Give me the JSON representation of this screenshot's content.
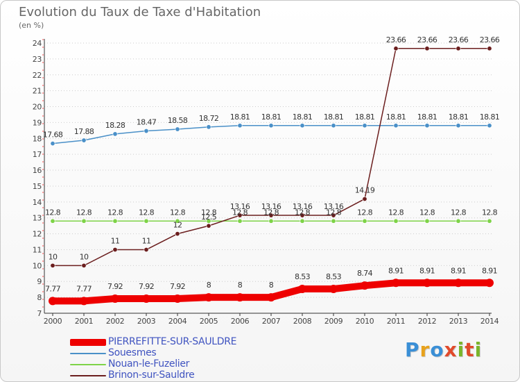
{
  "title": "Evolution du Taux de Taxe d'Habitation",
  "unit": "(en %)",
  "logo": {
    "text": "Proxiti",
    "colors": [
      "#3a8fd6",
      "#e8a21c",
      "#3a8fd6",
      "#e14a2b",
      "#7ab52a",
      "#e14a2b",
      "#7ab52a"
    ]
  },
  "chart_data": {
    "type": "line",
    "title": "Evolution du Taux de Taxe d'Habitation",
    "ylabel": "(en %)",
    "xlabel": "",
    "x": [
      "2000",
      "2001",
      "2002",
      "2003",
      "2004",
      "2005",
      "2006",
      "2007",
      "2008",
      "2009",
      "2010",
      "2011",
      "2012",
      "2013",
      "2014"
    ],
    "ylim": [
      7,
      24
    ],
    "yticks": [
      "7",
      "8",
      "9",
      "10",
      "11",
      "12",
      "13",
      "14",
      "15",
      "16",
      "17",
      "18",
      "19",
      "20",
      "21",
      "22",
      "23",
      "24"
    ],
    "grid": "horizontal dotted",
    "legend_position": "bottom-left",
    "series": [
      {
        "name": "PIERREFITTE-SUR-SAULDRE",
        "color": "#ee0000",
        "emphasis": true,
        "values": [
          7.77,
          7.77,
          7.92,
          7.92,
          7.92,
          8,
          8,
          8,
          8.53,
          8.53,
          8.74,
          8.91,
          8.91,
          8.91,
          8.91
        ],
        "labels": [
          "7.77",
          "7.77",
          "7.92",
          "7.92",
          "7.92",
          "8",
          "8",
          "8",
          "8.53",
          "8.53",
          "8.74",
          "8.91",
          "8.91",
          "8.91",
          "8.91"
        ]
      },
      {
        "name": "Souesmes",
        "color": "#4a90c8",
        "values": [
          17.68,
          17.88,
          18.28,
          18.47,
          18.58,
          18.72,
          18.81,
          18.81,
          18.81,
          18.81,
          18.81,
          18.81,
          18.81,
          18.81,
          18.81
        ],
        "labels": [
          "17.68",
          "17.88",
          "18.28",
          "18.47",
          "18.58",
          "18.72",
          "18.81",
          "18.81",
          "18.81",
          "18.81",
          "18.81",
          "18.81",
          "18.81",
          "18.81",
          "18.81"
        ]
      },
      {
        "name": "Nouan-le-Fuzelier",
        "color": "#7ed348",
        "values": [
          12.8,
          12.8,
          12.8,
          12.8,
          12.8,
          12.8,
          12.8,
          12.8,
          12.8,
          12.8,
          12.8,
          12.8,
          12.8,
          12.8,
          12.8
        ],
        "labels": [
          "12.8",
          "12.8",
          "12.8",
          "12.8",
          "12.8",
          "12.8",
          "12.8",
          "12.8",
          "12.8",
          "12.8",
          "12.8",
          "12.8",
          "12.8",
          "12.8",
          "12.8"
        ]
      },
      {
        "name": "Brinon-sur-Sauldre",
        "color": "#6b1e1e",
        "values": [
          10,
          10,
          11,
          11,
          12,
          12.5,
          13.16,
          13.16,
          13.16,
          13.16,
          14.19,
          23.66,
          23.66,
          23.66,
          23.66
        ],
        "labels": [
          "10",
          "10",
          "11",
          "11",
          "12",
          "12.5",
          "13.16",
          "13.16",
          "13.16",
          "13.16",
          "14.19",
          "23.66",
          "23.66",
          "23.66",
          "23.66"
        ]
      }
    ]
  }
}
